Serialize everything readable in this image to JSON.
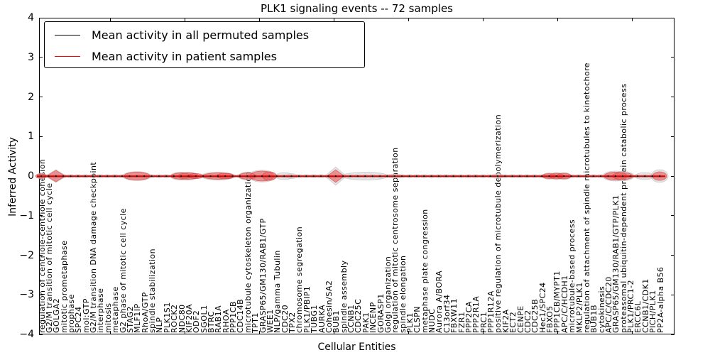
{
  "chart_data": {
    "type": "violin",
    "title": "PLK1 signaling events -- 72 samples",
    "xlabel": "Cellular Entities",
    "ylabel": "Inferred Activity",
    "ylim": [
      -4,
      4
    ],
    "yticks": [
      "4",
      "3",
      "2",
      "1",
      "0",
      "−1",
      "−2",
      "−3",
      "−4"
    ],
    "grid": false,
    "legend_position": "upper left",
    "series": [
      {
        "name": "Mean activity in all permuted samples",
        "color": "#000000",
        "mean_value": 0.0
      },
      {
        "name": "Mean activity in patient samples",
        "color": "#ff0000",
        "mean_value": 0.0
      }
    ],
    "violin_colors": {
      "patient_fill": "#e86060",
      "patient_edge": "#d84040",
      "permuted_fill": "#c9c9c9",
      "permuted_edge": "#bdbdbd"
    },
    "categories": [
      "regulation of centriole-centriole cohesion",
      "G2/M transition of mitotic cell cycle",
      "GOLGA2",
      "mitotic prometaphase",
      "prophase",
      "SPC24",
      "mol:GTP",
      "G2/M transition DNA damage checkpoint",
      "interphase",
      "mitosis",
      "metaphase",
      "G2 phase of mitotic cell cycle",
      "STAG2",
      "MLF1IP",
      "RhoA/GTP",
      "spindle stabilization",
      "NLP",
      "PLK1S1",
      "ROCK2",
      "NDC80",
      "KIF20A",
      "ODF2",
      "SGOL1",
      "BTRC",
      "RAB1A",
      "RHOA",
      "PPP1CB",
      "CDC14B",
      "microtubule cytoskeleton organization",
      "TPT1",
      "GRASP65/GM130/RAB1/GTP",
      "WEE1",
      "NLP/gamma Tubulin",
      "CDC20",
      "TPX2",
      "chromosome segregation",
      "PLK1/PBIP1",
      "TUBG1",
      "AURKA",
      "Cohesin/SA2",
      "BUB1",
      "spindle assembly",
      "CCNB1",
      "CDC25C",
      "PAK1",
      "INCENP",
      "GORASP1",
      "Golgi organization",
      "regulation of mitotic centrosome separation",
      "spindle elongation",
      "PLK1",
      "CLSPN",
      "metaphase plate congression",
      "NUDC",
      "Aurora A/BORA",
      "C13orf34",
      "FBXW11",
      "FZR1",
      "PPP2CA",
      "PPP2R1A",
      "PRC1",
      "PPP1R12A",
      "positive regulation of microtubule depolymerization",
      "KIF2A",
      "ECT2",
      "CENPE",
      "CDC2",
      "CDC25B",
      "Hec1/SPC24",
      "FBXO5",
      "PPP1CB/MYPT1",
      "APC/C/HCDH1",
      "microtubule-based process",
      "MKLP2/PLK1",
      "regulation of attachment of spindle microtubules to kinetochore",
      "BUB1B",
      "cytokinesis",
      "APC/C/CDC20",
      "GRASP65/GM130/RAB1/GTP/PLK1",
      "proteasomal ubiquitin-dependent protein catabolic process",
      "PLK1/PRC1-2",
      "ERCC6L",
      "CCNB1/CDK1",
      "PICH/PLK1",
      "PP2A-alpha B56"
    ],
    "default_violin": {
      "series": "permuted",
      "w": 1.05,
      "h": 0.04
    },
    "violins": [
      {
        "i": 0,
        "series": "permuted",
        "w": 1.5,
        "h": 0.07
      },
      {
        "i": 0,
        "series": "patient",
        "w": 1.5,
        "h": 0.055
      },
      {
        "i": 2,
        "series": "permuted",
        "w": 2.9,
        "h": 0.16,
        "shape": "diamond"
      },
      {
        "i": 2,
        "series": "patient",
        "w": 2.5,
        "h": 0.145,
        "shape": "diamond"
      },
      {
        "i": 13,
        "series": "permuted",
        "w": 3.9,
        "h": 0.115
      },
      {
        "i": 13,
        "series": "patient",
        "w": 3.5,
        "h": 0.1
      },
      {
        "i": 19,
        "series": "permuted",
        "w": 2.9,
        "h": 0.1
      },
      {
        "i": 19,
        "series": "patient",
        "w": 2.7,
        "h": 0.08
      },
      {
        "i": 20,
        "series": "permuted",
        "w": 2.9,
        "h": 0.1
      },
      {
        "i": 20,
        "series": "patient",
        "w": 2.7,
        "h": 0.08
      },
      {
        "i": 21,
        "series": "patient",
        "w": 1.9,
        "h": 0.065
      },
      {
        "i": 24,
        "series": "permuted",
        "w": 4.6,
        "h": 0.1
      },
      {
        "i": 24,
        "series": "patient",
        "w": 4.2,
        "h": 0.08
      },
      {
        "i": 25,
        "series": "patient",
        "w": 2.3,
        "h": 0.072
      },
      {
        "i": 28,
        "series": "permuted",
        "w": 2.5,
        "h": 0.1
      },
      {
        "i": 28,
        "series": "patient",
        "w": 2.3,
        "h": 0.08
      },
      {
        "i": 30,
        "series": "permuted",
        "w": 3.7,
        "h": 0.15
      },
      {
        "i": 30,
        "series": "patient",
        "w": 3.3,
        "h": 0.125
      },
      {
        "i": 31,
        "series": "patient",
        "w": 1.9,
        "h": 0.108
      },
      {
        "i": 33,
        "series": "permuted",
        "w": 2.3,
        "h": 0.09
      },
      {
        "i": 34,
        "series": "permuted",
        "w": 1.5,
        "h": 0.063
      },
      {
        "i": 40,
        "series": "permuted",
        "w": 2.9,
        "h": 0.23,
        "shape": "diamond"
      },
      {
        "i": 40,
        "series": "patient",
        "w": 2.3,
        "h": 0.16,
        "shape": "diamond"
      },
      {
        "i": 44,
        "series": "permuted",
        "w": 6.2,
        "h": 0.1
      },
      {
        "i": 48,
        "series": "permuted",
        "w": 1.9,
        "h": 0.054
      },
      {
        "i": 62,
        "series": "permuted",
        "w": 1.5,
        "h": 0.063
      },
      {
        "i": 69,
        "series": "permuted",
        "w": 1.9,
        "h": 0.08
      },
      {
        "i": 69,
        "series": "patient",
        "w": 1.9,
        "h": 0.063
      },
      {
        "i": 70,
        "series": "permuted",
        "w": 1.9,
        "h": 0.09
      },
      {
        "i": 70,
        "series": "patient",
        "w": 1.9,
        "h": 0.072
      },
      {
        "i": 71,
        "series": "permuted",
        "w": 1.9,
        "h": 0.09
      },
      {
        "i": 71,
        "series": "patient",
        "w": 1.9,
        "h": 0.072
      },
      {
        "i": 78,
        "series": "permuted",
        "w": 3.5,
        "h": 0.125
      },
      {
        "i": 78,
        "series": "patient",
        "w": 3.1,
        "h": 0.1
      },
      {
        "i": 79,
        "series": "permuted",
        "w": 3.1,
        "h": 0.117
      },
      {
        "i": 79,
        "series": "patient",
        "w": 2.7,
        "h": 0.09
      },
      {
        "i": 82,
        "series": "permuted",
        "w": 2.7,
        "h": 0.09
      },
      {
        "i": 84,
        "series": "permuted",
        "w": 2.3,
        "h": 0.16
      },
      {
        "i": 84,
        "series": "patient",
        "w": 1.9,
        "h": 0.108
      }
    ]
  }
}
